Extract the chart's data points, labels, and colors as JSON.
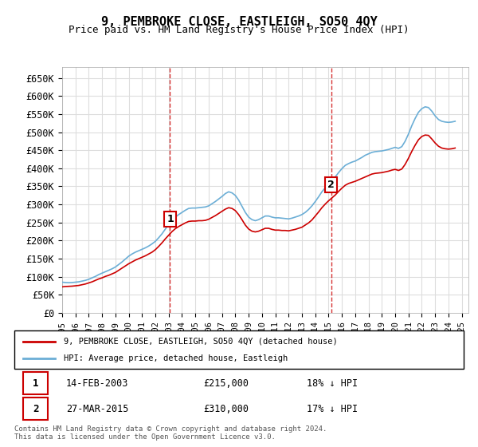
{
  "title": "9, PEMBROKE CLOSE, EASTLEIGH, SO50 4QY",
  "subtitle": "Price paid vs. HM Land Registry's House Price Index (HPI)",
  "ylabel_ticks": [
    "£0",
    "£50K",
    "£100K",
    "£150K",
    "£200K",
    "£250K",
    "£300K",
    "£350K",
    "£400K",
    "£450K",
    "£500K",
    "£550K",
    "£600K",
    "£650K"
  ],
  "ytick_values": [
    0,
    50000,
    100000,
    150000,
    200000,
    250000,
    300000,
    350000,
    400000,
    450000,
    500000,
    550000,
    600000,
    650000
  ],
  "ylim": [
    0,
    680000
  ],
  "xlim_start": 1995.0,
  "xlim_end": 2025.5,
  "background_color": "#ffffff",
  "grid_color": "#dddddd",
  "hpi_color": "#6baed6",
  "property_color": "#cc0000",
  "transaction1": {
    "date": "14-FEB-2003",
    "price": 215000,
    "label": "1",
    "year": 2003.1,
    "hpi_pct": "18% ↓ HPI"
  },
  "transaction2": {
    "date": "27-MAR-2015",
    "price": 310000,
    "label": "2",
    "year": 2015.2,
    "hpi_pct": "17% ↓ HPI"
  },
  "legend_line1": "9, PEMBROKE CLOSE, EASTLEIGH, SO50 4QY (detached house)",
  "legend_line2": "HPI: Average price, detached house, Eastleigh",
  "footer1": "Contains HM Land Registry data © Crown copyright and database right 2024.",
  "footer2": "This data is licensed under the Open Government Licence v3.0.",
  "hpi_data_x": [
    1995.0,
    1995.25,
    1995.5,
    1995.75,
    1996.0,
    1996.25,
    1996.5,
    1996.75,
    1997.0,
    1997.25,
    1997.5,
    1997.75,
    1998.0,
    1998.25,
    1998.5,
    1998.75,
    1999.0,
    1999.25,
    1999.5,
    1999.75,
    2000.0,
    2000.25,
    2000.5,
    2000.75,
    2001.0,
    2001.25,
    2001.5,
    2001.75,
    2002.0,
    2002.25,
    2002.5,
    2002.75,
    2003.0,
    2003.25,
    2003.5,
    2003.75,
    2004.0,
    2004.25,
    2004.5,
    2004.75,
    2005.0,
    2005.25,
    2005.5,
    2005.75,
    2006.0,
    2006.25,
    2006.5,
    2006.75,
    2007.0,
    2007.25,
    2007.5,
    2007.75,
    2008.0,
    2008.25,
    2008.5,
    2008.75,
    2009.0,
    2009.25,
    2009.5,
    2009.75,
    2010.0,
    2010.25,
    2010.5,
    2010.75,
    2011.0,
    2011.25,
    2011.5,
    2011.75,
    2012.0,
    2012.25,
    2012.5,
    2012.75,
    2013.0,
    2013.25,
    2013.5,
    2013.75,
    2014.0,
    2014.25,
    2014.5,
    2014.75,
    2015.0,
    2015.25,
    2015.5,
    2015.75,
    2016.0,
    2016.25,
    2016.5,
    2016.75,
    2017.0,
    2017.25,
    2017.5,
    2017.75,
    2018.0,
    2018.25,
    2018.5,
    2018.75,
    2019.0,
    2019.25,
    2019.5,
    2019.75,
    2020.0,
    2020.25,
    2020.5,
    2020.75,
    2021.0,
    2021.25,
    2021.5,
    2021.75,
    2022.0,
    2022.25,
    2022.5,
    2022.75,
    2023.0,
    2023.25,
    2023.5,
    2023.75,
    2024.0,
    2024.25,
    2024.5
  ],
  "hpi_data_y": [
    85000,
    84000,
    83500,
    84000,
    85000,
    86000,
    88000,
    90000,
    93000,
    97000,
    101000,
    106000,
    110000,
    114000,
    118000,
    122000,
    127000,
    134000,
    141000,
    149000,
    157000,
    163000,
    168000,
    172000,
    176000,
    180000,
    185000,
    191000,
    198000,
    208000,
    219000,
    232000,
    245000,
    256000,
    265000,
    272000,
    278000,
    284000,
    289000,
    290000,
    290000,
    291000,
    292000,
    293000,
    296000,
    302000,
    308000,
    315000,
    322000,
    330000,
    335000,
    332000,
    325000,
    312000,
    295000,
    278000,
    265000,
    258000,
    255000,
    258000,
    263000,
    268000,
    268000,
    265000,
    263000,
    263000,
    262000,
    261000,
    260000,
    262000,
    265000,
    268000,
    272000,
    278000,
    286000,
    296000,
    308000,
    321000,
    335000,
    346000,
    356000,
    366000,
    376000,
    388000,
    399000,
    408000,
    413000,
    417000,
    420000,
    425000,
    430000,
    436000,
    440000,
    444000,
    446000,
    447000,
    448000,
    450000,
    452000,
    455000,
    458000,
    455000,
    460000,
    475000,
    495000,
    518000,
    538000,
    555000,
    565000,
    570000,
    568000,
    558000,
    545000,
    535000,
    530000,
    528000,
    527000,
    528000,
    530000
  ],
  "property_data_x": [
    1995.0,
    1995.25,
    1995.5,
    1995.75,
    1996.0,
    1996.25,
    1996.5,
    1996.75,
    1997.0,
    1997.25,
    1997.5,
    1997.75,
    1998.0,
    1998.25,
    1998.5,
    1998.75,
    1999.0,
    1999.25,
    1999.5,
    1999.75,
    2000.0,
    2000.25,
    2000.5,
    2000.75,
    2001.0,
    2001.25,
    2001.5,
    2001.75,
    2002.0,
    2002.25,
    2002.5,
    2002.75,
    2003.0,
    2003.25,
    2003.5,
    2003.75,
    2004.0,
    2004.25,
    2004.5,
    2004.75,
    2005.0,
    2005.25,
    2005.5,
    2005.75,
    2006.0,
    2006.25,
    2006.5,
    2006.75,
    2007.0,
    2007.25,
    2007.5,
    2007.75,
    2008.0,
    2008.25,
    2008.5,
    2008.75,
    2009.0,
    2009.25,
    2009.5,
    2009.75,
    2010.0,
    2010.25,
    2010.5,
    2010.75,
    2011.0,
    2011.25,
    2011.5,
    2011.75,
    2012.0,
    2012.25,
    2012.5,
    2012.75,
    2013.0,
    2013.25,
    2013.5,
    2013.75,
    2014.0,
    2014.25,
    2014.5,
    2014.75,
    2015.0,
    2015.25,
    2015.5,
    2015.75,
    2016.0,
    2016.25,
    2016.5,
    2016.75,
    2017.0,
    2017.25,
    2017.5,
    2017.75,
    2018.0,
    2018.25,
    2018.5,
    2018.75,
    2019.0,
    2019.25,
    2019.5,
    2019.75,
    2020.0,
    2020.25,
    2020.5,
    2020.75,
    2021.0,
    2021.25,
    2021.5,
    2021.75,
    2022.0,
    2022.25,
    2022.5,
    2022.75,
    2023.0,
    2023.25,
    2023.5,
    2023.75,
    2024.0,
    2024.25,
    2024.5
  ],
  "property_data_y": [
    72000,
    73000,
    73500,
    74000,
    75000,
    76000,
    78000,
    80000,
    83000,
    86000,
    90000,
    94000,
    97000,
    101000,
    104000,
    108000,
    112000,
    118000,
    124000,
    130000,
    136000,
    141000,
    146000,
    150000,
    154000,
    158000,
    163000,
    168000,
    175000,
    184000,
    194000,
    205000,
    215000,
    225000,
    233000,
    239000,
    244000,
    249000,
    253000,
    254000,
    254000,
    255000,
    255000,
    256000,
    259000,
    264000,
    269000,
    275000,
    281000,
    287000,
    291000,
    289000,
    283000,
    272000,
    258000,
    243000,
    232000,
    226000,
    224000,
    226000,
    230000,
    234000,
    234000,
    231000,
    229000,
    229000,
    228000,
    228000,
    227000,
    229000,
    231000,
    234000,
    237000,
    243000,
    249000,
    257000,
    268000,
    279000,
    291000,
    301000,
    310000,
    318000,
    326000,
    336000,
    345000,
    353000,
    358000,
    361000,
    364000,
    368000,
    372000,
    376000,
    380000,
    384000,
    386000,
    387000,
    388000,
    390000,
    392000,
    395000,
    397000,
    394000,
    398000,
    411000,
    428000,
    447000,
    464000,
    479000,
    488000,
    492000,
    491000,
    481000,
    470000,
    461000,
    456000,
    454000,
    453000,
    454000,
    456000
  ]
}
